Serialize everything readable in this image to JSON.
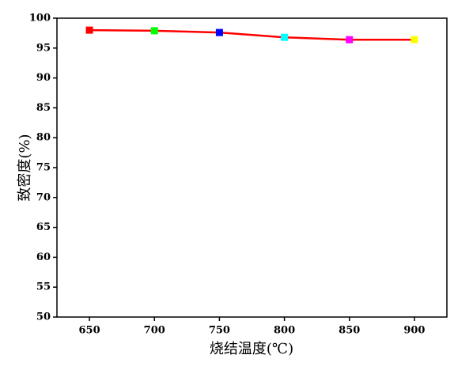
{
  "chart_data": {
    "type": "line",
    "x": [
      650,
      700,
      750,
      800,
      850,
      900
    ],
    "series": [
      {
        "color": "#ff0000",
        "values": [
          98.0,
          97.9,
          97.6,
          96.8,
          96.4,
          96.4
        ],
        "marker_colors": [
          "#ff0000",
          "#00ff00",
          "#0000ff",
          "#00ffff",
          "#ff00ff",
          "#ffff00"
        ]
      }
    ],
    "xlabel": "烧结温度(℃)",
    "ylabel": "致密度(%)",
    "xlim": [
      625,
      925
    ],
    "xticks": [
      650,
      700,
      750,
      800,
      850,
      900
    ],
    "ylim": [
      50,
      100
    ],
    "yticks": [
      50,
      55,
      60,
      65,
      70,
      75,
      80,
      85,
      90,
      95,
      100
    ]
  }
}
